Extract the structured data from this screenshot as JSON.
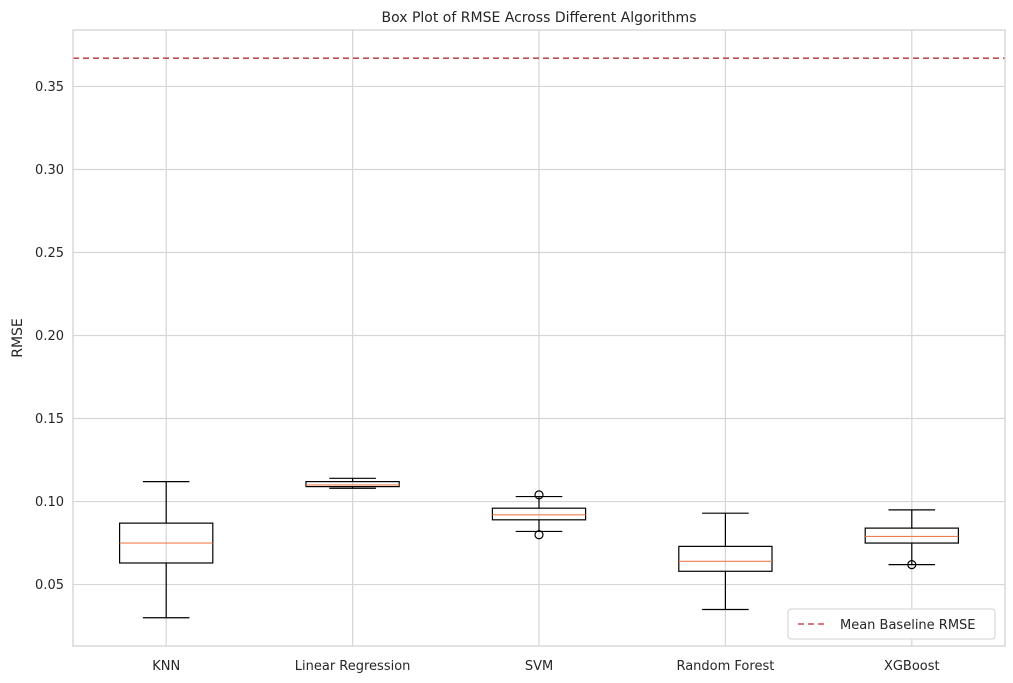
{
  "chart_data": {
    "type": "box",
    "title": "Box Plot of RMSE Across Different Algorithms",
    "xlabel": "",
    "ylabel": "RMSE",
    "ylim": [
      0.013,
      0.384
    ],
    "yticks": [
      0.05,
      0.1,
      0.15,
      0.2,
      0.25,
      0.3,
      0.35
    ],
    "ytick_labels": [
      "0.05",
      "0.10",
      "0.15",
      "0.20",
      "0.25",
      "0.30",
      "0.35"
    ],
    "grid": true,
    "categories": [
      "KNN",
      "Linear Regression",
      "SVM",
      "Random Forest",
      "XGBoost"
    ],
    "boxes": [
      {
        "category": "KNN",
        "whisker_low": 0.03,
        "q1": 0.063,
        "median": 0.075,
        "q3": 0.087,
        "whisker_high": 0.112,
        "outliers": []
      },
      {
        "category": "Linear Regression",
        "whisker_low": 0.108,
        "q1": 0.109,
        "median": 0.11,
        "q3": 0.112,
        "whisker_high": 0.114,
        "outliers": []
      },
      {
        "category": "SVM",
        "whisker_low": 0.082,
        "q1": 0.089,
        "median": 0.092,
        "q3": 0.096,
        "whisker_high": 0.103,
        "outliers": [
          0.104,
          0.08
        ]
      },
      {
        "category": "Random Forest",
        "whisker_low": 0.035,
        "q1": 0.058,
        "median": 0.064,
        "q3": 0.073,
        "whisker_high": 0.093,
        "outliers": []
      },
      {
        "category": "XGBoost",
        "whisker_low": 0.062,
        "q1": 0.075,
        "median": 0.079,
        "q3": 0.084,
        "whisker_high": 0.095,
        "outliers": [
          0.062
        ]
      }
    ],
    "reference_line": {
      "label": "Mean Baseline RMSE",
      "value": 0.367,
      "style": "dashed",
      "color": "#d62728"
    },
    "legend": {
      "position": "lower-right",
      "entries": [
        "Mean Baseline RMSE"
      ]
    },
    "colors": {
      "box": "#000000",
      "median": "#f07f50",
      "grid": "#d6d6d6",
      "baseline": "#c44e52"
    }
  }
}
